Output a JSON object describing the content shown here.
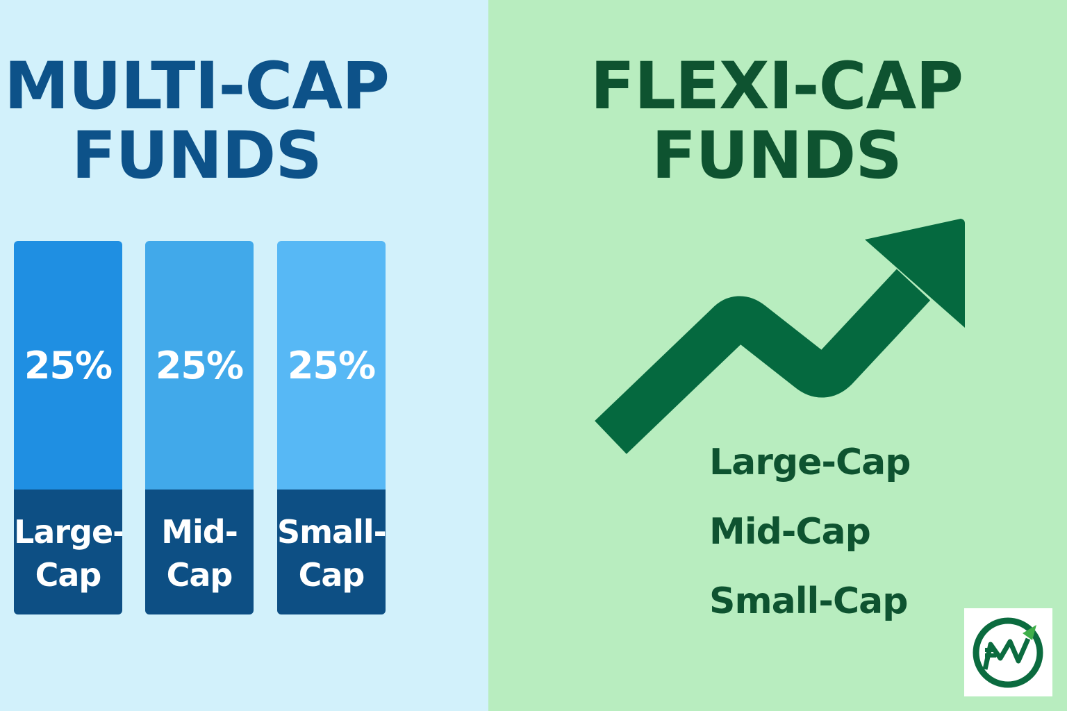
{
  "multi_cap": {
    "title_line1": "MULTI-CAP",
    "title_line2": "FUNDS",
    "background_color": "#d2f1fb",
    "title_color": "#0d5289",
    "bars": [
      {
        "percent": "25%",
        "label_line1": "Large-",
        "label_line2": "Cap",
        "top_color": "#1f8fe2",
        "bottom_color": "#0d4f84"
      },
      {
        "percent": "25%",
        "label_line1": "Mid-",
        "label_line2": "Cap",
        "top_color": "#41a9ea",
        "bottom_color": "#0d4f84"
      },
      {
        "percent": "25%",
        "label_line1": "Small-",
        "label_line2": "Cap",
        "top_color": "#57b8f5",
        "bottom_color": "#0d4f84"
      }
    ]
  },
  "flexi_cap": {
    "title_line1": "FLEXI-CAP",
    "title_line2": "FUNDS",
    "background_color": "#b8edbf",
    "title_color": "#0e5330",
    "arrow_color": "#05693f",
    "arrow_icon": "trend-up-arrow-icon",
    "caps": [
      "Large-Cap",
      "Mid-Cap",
      "Small-Cap"
    ]
  },
  "logo": {
    "icon": "rupee-growth-logo-icon",
    "ring_color": "#0b6b3f",
    "accent_color": "#3fae49"
  }
}
